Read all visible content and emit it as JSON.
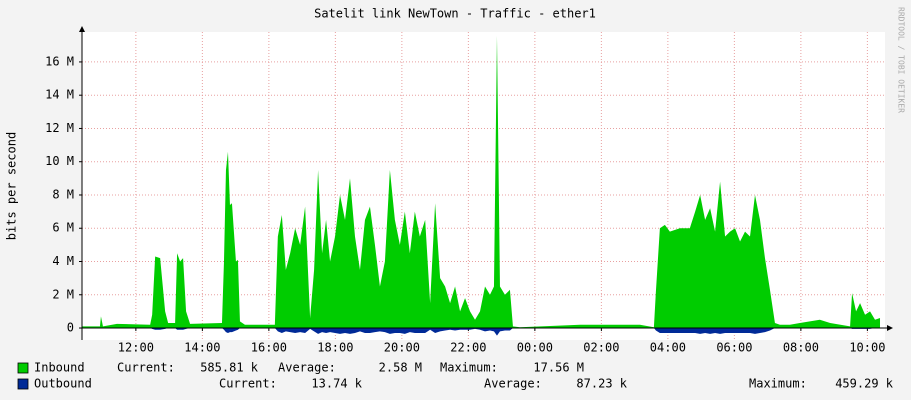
{
  "chart_data": {
    "type": "area",
    "title": "Satelit link NewTown - Traffic - ether1",
    "y_label": "bits per second",
    "watermark": "RRDTOOL / TOBI OETIKER",
    "xlim": [
      10.38,
      34.53
    ],
    "ylim": [
      -0.72,
      17.8
    ],
    "xticks": [
      {
        "value": 12,
        "label": "12:00"
      },
      {
        "value": 14,
        "label": "14:00"
      },
      {
        "value": 16,
        "label": "16:00"
      },
      {
        "value": 18,
        "label": "18:00"
      },
      {
        "value": 20,
        "label": "20:00"
      },
      {
        "value": 22,
        "label": "22:00"
      },
      {
        "value": 24,
        "label": "00:00"
      },
      {
        "value": 26,
        "label": "02:00"
      },
      {
        "value": 28,
        "label": "04:00"
      },
      {
        "value": 30,
        "label": "06:00"
      },
      {
        "value": 32,
        "label": "08:00"
      },
      {
        "value": 34,
        "label": "10:00"
      }
    ],
    "yticks": [
      0,
      {
        "value": 2,
        "label": "2 M"
      },
      {
        "value": 4,
        "label": "4 M"
      },
      {
        "value": 6,
        "label": "6 M"
      },
      {
        "value": 8,
        "label": "8 M"
      },
      {
        "value": 10,
        "label": "10 M"
      },
      {
        "value": 12,
        "label": "12 M"
      },
      {
        "value": 14,
        "label": "14 M"
      },
      {
        "value": 16,
        "label": "16 M"
      }
    ],
    "grid": true,
    "stat_labels": [
      "Current:",
      "Average:",
      "Maximum:"
    ],
    "x": [
      10.38,
      10.92,
      10.95,
      11.01,
      11.43,
      12.43,
      12.49,
      12.58,
      12.73,
      12.88,
      12.97,
      13.18,
      13.24,
      13.33,
      13.42,
      13.51,
      13.63,
      14.59,
      14.65,
      14.71,
      14.77,
      14.83,
      14.89,
      15.01,
      15.07,
      15.13,
      15.28,
      16.18,
      16.27,
      16.39,
      16.51,
      16.64,
      16.79,
      16.94,
      17.09,
      17.24,
      17.36,
      17.48,
      17.6,
      17.72,
      17.84,
      17.99,
      18.14,
      18.29,
      18.44,
      18.59,
      18.74,
      18.89,
      19.04,
      19.19,
      19.34,
      19.49,
      19.64,
      19.79,
      19.94,
      20.09,
      20.24,
      20.39,
      20.54,
      20.7,
      20.85,
      21.0,
      21.15,
      21.3,
      21.45,
      21.6,
      21.75,
      21.9,
      22.05,
      22.2,
      22.35,
      22.5,
      22.65,
      22.77,
      22.86,
      22.95,
      23.1,
      23.25,
      23.34,
      23.55,
      25.36,
      26.26,
      27.16,
      27.58,
      27.64,
      27.76,
      27.91,
      28.06,
      28.36,
      28.66,
      28.82,
      28.97,
      29.12,
      29.27,
      29.42,
      29.57,
      29.72,
      29.87,
      30.02,
      30.17,
      30.32,
      30.47,
      30.62,
      30.77,
      30.92,
      31.07,
      31.22,
      31.37,
      31.67,
      31.97,
      32.57,
      32.88,
      33.48,
      33.54,
      33.66,
      33.78,
      33.93,
      34.08,
      34.23,
      34.38
    ],
    "series": [
      {
        "name": "Inbound",
        "color": "#00cc00",
        "stats": [
          "585.81 k",
          "2.58 M",
          "17.56 M"
        ],
        "values": [
          0.1,
          0.1,
          0.7,
          0.1,
          0.25,
          0.2,
          0.8,
          4.3,
          4.2,
          1.0,
          0.3,
          0.3,
          4.5,
          4.0,
          4.2,
          1.0,
          0.25,
          0.3,
          4.0,
          9.5,
          10.6,
          7.4,
          7.5,
          4.0,
          4.1,
          0.4,
          0.2,
          0.2,
          5.5,
          6.8,
          3.5,
          4.5,
          6.0,
          5.0,
          7.3,
          0.6,
          3.5,
          9.5,
          4.5,
          6.5,
          4.0,
          5.5,
          8.0,
          6.5,
          9.0,
          5.5,
          3.5,
          6.5,
          7.3,
          5.0,
          2.5,
          4.0,
          9.5,
          6.5,
          5.0,
          7.0,
          4.5,
          7.0,
          5.5,
          6.5,
          1.5,
          7.5,
          3.0,
          2.5,
          1.5,
          2.5,
          1.0,
          1.8,
          1.0,
          0.5,
          1.0,
          2.5,
          2.0,
          2.5,
          17.56,
          2.5,
          2.0,
          2.3,
          0.1,
          0.05,
          0.2,
          0.2,
          0.2,
          0.05,
          2.2,
          6.0,
          6.2,
          5.8,
          6.0,
          6.0,
          7.0,
          8.0,
          6.5,
          7.2,
          5.8,
          8.8,
          5.5,
          5.8,
          6.0,
          5.2,
          5.8,
          5.5,
          8.0,
          6.5,
          4.2,
          2.3,
          0.3,
          0.2,
          0.2,
          0.3,
          0.5,
          0.3,
          0.1,
          2.1,
          1.0,
          1.5,
          0.8,
          1.0,
          0.5,
          0.6
        ]
      },
      {
        "name": "Outbound",
        "color": "#002a97",
        "stats": [
          "13.74 k",
          "87.23 k",
          "459.29 k"
        ],
        "values": [
          0,
          0,
          0,
          0,
          0,
          0,
          -0.05,
          -0.1,
          -0.1,
          -0.05,
          0,
          0,
          -0.1,
          -0.1,
          -0.1,
          -0.05,
          0,
          0,
          -0.1,
          -0.25,
          -0.3,
          -0.25,
          -0.25,
          -0.15,
          -0.1,
          0,
          0,
          0,
          -0.2,
          -0.3,
          -0.2,
          -0.25,
          -0.3,
          -0.25,
          -0.3,
          -0.05,
          -0.2,
          -0.35,
          -0.25,
          -0.3,
          -0.25,
          -0.3,
          -0.35,
          -0.3,
          -0.35,
          -0.3,
          -0.2,
          -0.3,
          -0.3,
          -0.25,
          -0.2,
          -0.25,
          -0.35,
          -0.3,
          -0.3,
          -0.35,
          -0.25,
          -0.3,
          -0.3,
          -0.3,
          -0.1,
          -0.3,
          -0.2,
          -0.15,
          -0.1,
          -0.15,
          -0.1,
          -0.1,
          -0.1,
          -0.05,
          -0.1,
          -0.2,
          -0.15,
          -0.2,
          -0.46,
          -0.2,
          -0.15,
          -0.15,
          0,
          0,
          0,
          0,
          0,
          0,
          -0.15,
          -0.3,
          -0.3,
          -0.3,
          -0.3,
          -0.3,
          -0.3,
          -0.35,
          -0.3,
          -0.35,
          -0.3,
          -0.35,
          -0.3,
          -0.3,
          -0.3,
          -0.3,
          -0.3,
          -0.3,
          -0.35,
          -0.3,
          -0.25,
          -0.15,
          0,
          0,
          0,
          0,
          0,
          0,
          0,
          -0.05,
          -0.05,
          -0.05,
          -0.05,
          -0.05,
          0,
          0
        ]
      }
    ]
  }
}
